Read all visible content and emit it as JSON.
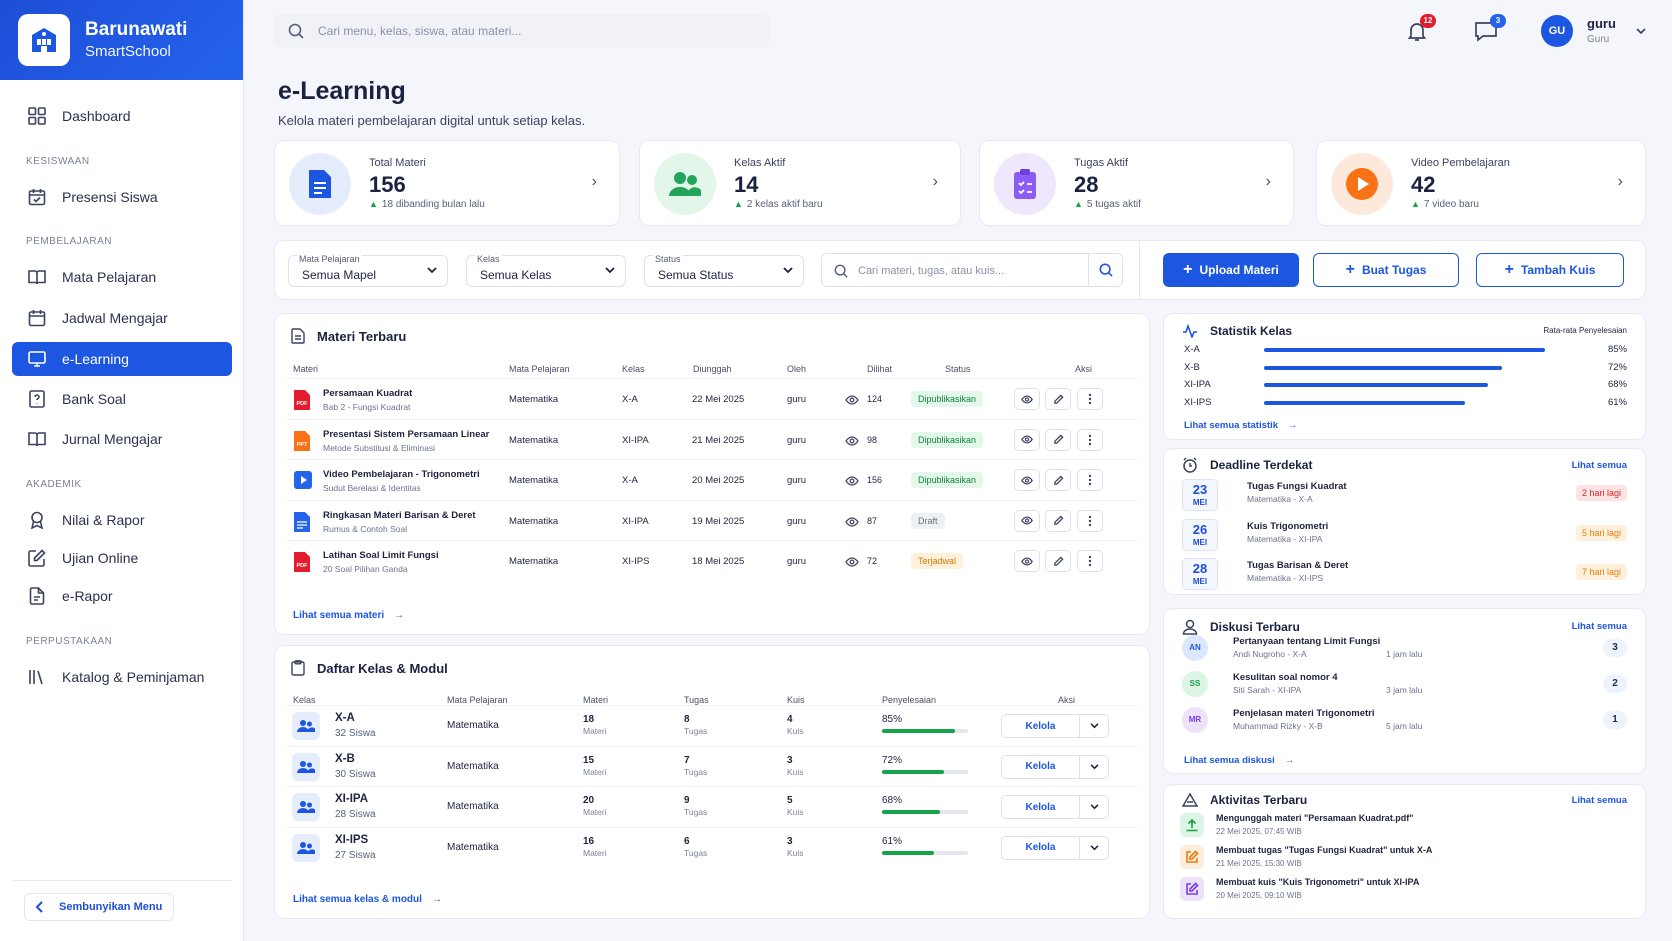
{
  "app": {
    "name": "Barunawati",
    "subtitle": "SmartSchool"
  },
  "sidebar": {
    "dashboard": "Dashboard",
    "sections": [
      "KESISWAAN",
      "PEMBELAJARAN",
      "AKADEMIK",
      "PERPUSTAKAAN"
    ],
    "items": [
      {
        "label": "Presensi Siswa",
        "icon": "calendar-check-icon"
      },
      {
        "label": "Mata Pelajaran",
        "icon": "book-icon"
      },
      {
        "label": "Jadwal Mengajar",
        "icon": "calendar-icon"
      },
      {
        "label": "e-Learning",
        "icon": "monitor-icon",
        "active": true
      },
      {
        "label": "Bank Soal",
        "icon": "question-icon"
      },
      {
        "label": "Jurnal Mengajar",
        "icon": "book-open-icon"
      },
      {
        "label": "Nilai & Rapor",
        "icon": "award-icon"
      },
      {
        "label": "Ujian Online",
        "icon": "edit-icon"
      },
      {
        "label": "e-Rapor",
        "icon": "file-icon"
      },
      {
        "label": "Katalog & Peminjaman",
        "icon": "library-icon"
      }
    ],
    "hide_menu": "Sembunyikan Menu"
  },
  "header": {
    "search_placeholder": "Cari menu, kelas, siswa, atau materi...",
    "notif_count": "12",
    "message_count": "3",
    "user": {
      "initials": "GU",
      "name": "guru",
      "role": "Guru"
    }
  },
  "page": {
    "title": "e-Learning",
    "subtitle": "Kelola materi pembelajaran digital untuk setiap kelas."
  },
  "stats": [
    {
      "label": "Total Materi",
      "value": "156",
      "sub": "18 dibanding bulan lalu"
    },
    {
      "label": "Kelas Aktif",
      "value": "14",
      "sub": "2 kelas aktif baru"
    },
    {
      "label": "Tugas Aktif",
      "value": "28",
      "sub": "5 tugas aktif"
    },
    {
      "label": "Video Pembelajaran",
      "value": "42",
      "sub": "7 video baru"
    }
  ],
  "filters": {
    "mapel": {
      "label": "Mata Pelajaran",
      "value": "Semua Mapel"
    },
    "kelas": {
      "label": "Kelas",
      "value": "Semua Kelas"
    },
    "status": {
      "label": "Status",
      "value": "Semua Status"
    },
    "search_placeholder": "Cari materi, tugas, atau kuis..."
  },
  "actions": {
    "upload": "Upload Materi",
    "tugas": "Buat Tugas",
    "kuis": "Tambah Kuis"
  },
  "materi": {
    "title": "Materi Terbaru",
    "headers": [
      "Materi",
      "Mata Pelajaran",
      "Kelas",
      "Diunggah",
      "Oleh",
      "Dilihat",
      "Status",
      "Aksi"
    ],
    "rows": [
      {
        "name": "Persamaan Kuadrat",
        "desc": "Bab 2 - Fungsi Kuadrat",
        "type": "PDF",
        "mapel": "Matematika",
        "kelas": "X-A",
        "date": "22 Mei 2025",
        "by": "guru",
        "views": "124",
        "status": "Dipublikasikan",
        "st": "pub"
      },
      {
        "name": "Presentasi Sistem Persamaan Linear",
        "desc": "Metode Substitusi & Eliminasi",
        "type": "PPT",
        "mapel": "Matematika",
        "kelas": "XI-IPA",
        "date": "21 Mei 2025",
        "by": "guru",
        "views": "98",
        "status": "Dipublikasikan",
        "st": "pub"
      },
      {
        "name": "Video Pembelajaran - Trigonometri",
        "desc": "Sudut Berelasi & Identitas",
        "type": "VID",
        "mapel": "Matematika",
        "kelas": "X-A",
        "date": "20 Mei 2025",
        "by": "guru",
        "views": "156",
        "status": "Dipublikasikan",
        "st": "pub"
      },
      {
        "name": "Ringkasan Materi Barisan & Deret",
        "desc": "Rumus & Contoh Soal",
        "type": "DOC",
        "mapel": "Matematika",
        "kelas": "XI-IPA",
        "date": "19 Mei 2025",
        "by": "guru",
        "views": "87",
        "status": "Draft",
        "st": "draft"
      },
      {
        "name": "Latihan Soal Limit Fungsi",
        "desc": "20 Soal Pilihan Ganda",
        "type": "PDF",
        "mapel": "Matematika",
        "kelas": "XI-IPS",
        "date": "18 Mei 2025",
        "by": "guru",
        "views": "72",
        "status": "Terjadwal",
        "st": "sch"
      }
    ],
    "link": "Lihat semua materi"
  },
  "kelas": {
    "title": "Daftar Kelas & Modul",
    "headers": [
      "Kelas",
      "Mata Pelajaran",
      "Materi",
      "Tugas",
      "Kuis",
      "Penyelesaian",
      "Aksi"
    ],
    "unit_materi": "Materi",
    "unit_tugas": "Tugas",
    "unit_kuis": "Kuis",
    "manage": "Kelola",
    "rows": [
      {
        "name": "X-A",
        "siswa": "32 Siswa",
        "mapel": "Matematika",
        "materi": "18",
        "tugas": "8",
        "kuis": "4",
        "pct": "85%",
        "p": 0.85
      },
      {
        "name": "X-B",
        "siswa": "30 Siswa",
        "mapel": "Matematika",
        "materi": "15",
        "tugas": "7",
        "kuis": "3",
        "pct": "72%",
        "p": 0.72
      },
      {
        "name": "XI-IPA",
        "siswa": "28 Siswa",
        "mapel": "Matematika",
        "materi": "20",
        "tugas": "9",
        "kuis": "5",
        "pct": "68%",
        "p": 0.68
      },
      {
        "name": "XI-IPS",
        "siswa": "27 Siswa",
        "mapel": "Matematika",
        "materi": "16",
        "tugas": "6",
        "kuis": "3",
        "pct": "61%",
        "p": 0.61
      }
    ],
    "link": "Lihat semua kelas & modul"
  },
  "statistik": {
    "title": "Statistik Kelas",
    "caption": "Rata-rata Penyelesaian",
    "rows": [
      {
        "kelas": "X-A",
        "pct": "85%",
        "p": 0.85
      },
      {
        "kelas": "X-B",
        "pct": "72%",
        "p": 0.72
      },
      {
        "kelas": "XI-IPA",
        "pct": "68%",
        "p": 0.68
      },
      {
        "kelas": "XI-IPS",
        "pct": "61%",
        "p": 0.61
      }
    ],
    "link": "Lihat semua statistik"
  },
  "deadline": {
    "title": "Deadline Terdekat",
    "see_all": "Lihat semua",
    "rows": [
      {
        "day": "23",
        "month": "MEI",
        "title": "Tugas Fungsi Kuadrat",
        "sub": "Matematika - X-A",
        "due": "2 hari lagi",
        "tone": "red"
      },
      {
        "day": "26",
        "month": "MEI",
        "title": "Kuis Trigonometri",
        "sub": "Matematika - XI-IPA",
        "due": "5 hari lagi",
        "tone": "orange"
      },
      {
        "day": "28",
        "month": "MEI",
        "title": "Tugas Barisan & Deret",
        "sub": "Matematika - XI-IPS",
        "due": "7 hari lagi",
        "tone": "orange"
      }
    ]
  },
  "diskusi": {
    "title": "Diskusi Terbaru",
    "see_all": "Lihat semua",
    "rows": [
      {
        "initials": "AN",
        "title": "Pertanyaan tentang Limit Fungsi",
        "sub": "Andi Nugroho - X-A",
        "time": "1 jam lalu",
        "count": "3"
      },
      {
        "initials": "SS",
        "title": "Kesulitan soal nomor 4",
        "sub": "Siti Sarah - XI-IPA",
        "time": "3 jam lalu",
        "count": "2"
      },
      {
        "initials": "MR",
        "title": "Penjelasan materi Trigonometri",
        "sub": "Muhammad Rizky - X-B",
        "time": "5 jam lalu",
        "count": "1"
      }
    ],
    "link": "Lihat semua diskusi"
  },
  "aktivitas": {
    "title": "Aktivitas Terbaru",
    "see_all": "Lihat semua",
    "rows": [
      {
        "title": "Mengunggah materi \"Persamaan Kuadrat.pdf\"",
        "time": "22 Mei 2025, 07:45 WIB"
      },
      {
        "title": "Membuat tugas \"Tugas Fungsi Kuadrat\" untuk X-A",
        "time": "21 Mei 2025, 15:30 WIB"
      },
      {
        "title": "Membuat kuis \"Kuis Trigonometri\" untuk XI-IPA",
        "time": "20 Mei 2025, 09:10 WIB"
      }
    ]
  },
  "colors": {
    "primary": "#1d56e0",
    "green": "#16a34a",
    "orange": "#f97316",
    "purple": "#7c3aed",
    "red": "#e11d2e"
  }
}
